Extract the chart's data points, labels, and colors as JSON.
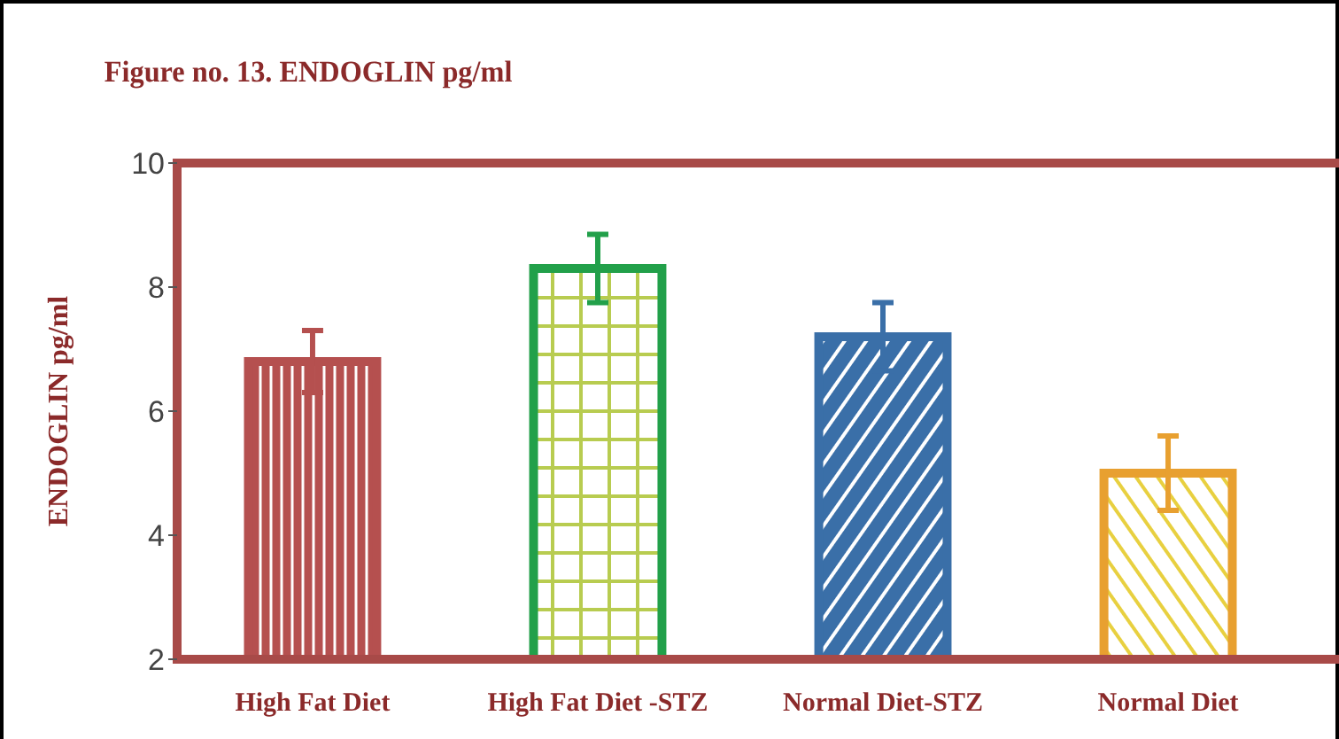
{
  "chart_data": {
    "type": "bar",
    "title": "Figure no. 13. ENDOGLIN pg/ml",
    "ylabel": "ENDOGLIN pg/ml",
    "categories": [
      "High Fat Diet",
      "High Fat Diet -STZ",
      "Normal Diet-STZ",
      "Normal Diet"
    ],
    "values": [
      6.8,
      8.3,
      7.2,
      5.0
    ],
    "errors": [
      0.5,
      0.55,
      0.55,
      0.6
    ],
    "colors": [
      "#b5504f",
      "#22a04a",
      "#3a6fa8",
      "#e8a030"
    ],
    "ylim": [
      2,
      10
    ],
    "yticks": [
      2,
      4,
      6,
      8,
      10
    ],
    "grid": false
  }
}
